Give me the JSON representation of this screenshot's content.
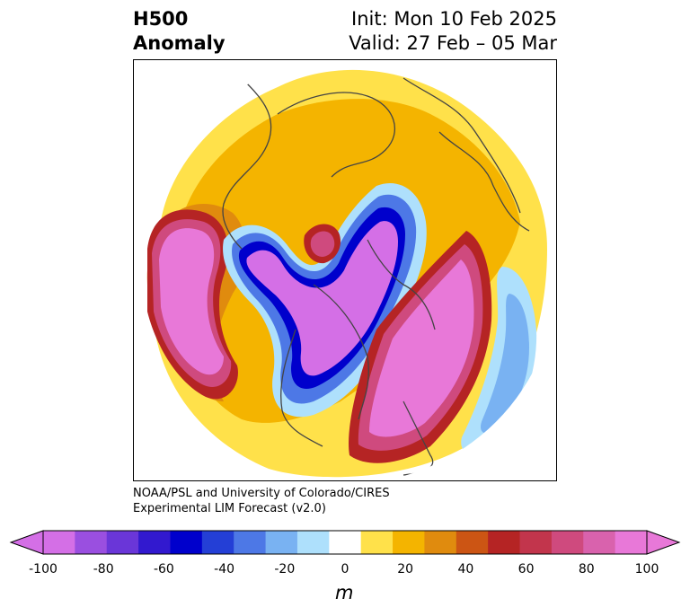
{
  "title": {
    "left_line1": "H500",
    "left_line2": "Anomaly",
    "right_line1": "Init: Mon 10 Feb 2025",
    "right_line2": "Valid: 27 Feb – 05 Mar"
  },
  "credits": {
    "line1": "NOAA/PSL and University of Colorado/CIRES",
    "line2": "Experimental LIM Forecast (v2.0)"
  },
  "colorbar": {
    "unit": "m",
    "tick_labels": [
      "-100",
      "-80",
      "-60",
      "-40",
      "-20",
      "0",
      "20",
      "40",
      "60",
      "80",
      "100"
    ],
    "levels": [
      -100,
      -90,
      -80,
      -70,
      -60,
      -50,
      -40,
      -30,
      -20,
      -10,
      10,
      20,
      30,
      40,
      50,
      60,
      70,
      80,
      90,
      100
    ],
    "colors": [
      "#d46fe6",
      "#9a4fe0",
      "#6a36d8",
      "#3219cf",
      "#0000cc",
      "#243fd6",
      "#4d78e6",
      "#79b2f2",
      "#aee0fc",
      "#ffffff",
      "#ffe14a",
      "#f4b400",
      "#e08b0e",
      "#cc5514",
      "#b52424",
      "#c2354c",
      "#cf4a7e",
      "#d962ad",
      "#e878d8"
    ],
    "under_color": "#d46fe6",
    "over_color": "#e878d8"
  },
  "map": {
    "projection": "north-polar-stereographic",
    "field": "500 hPa geopotential height anomaly",
    "features": [
      "positive anomaly over North Pacific",
      "negative anomaly over central North America and Arctic",
      "positive anomaly over eastern North America and western Atlantic",
      "negative anomaly over central Atlantic"
    ]
  }
}
